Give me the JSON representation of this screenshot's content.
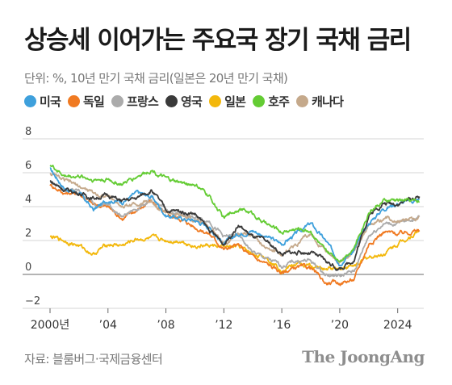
{
  "header": {
    "title": "상승세 이어가는 주요국 장기 국채 금리",
    "subtitle": "단위: %, 10년 만기 국채 금리(일본은 20년 만기 국채)"
  },
  "footer": {
    "source": "자료: 블룸버그·국제금융센터",
    "logo": "The JoongAng"
  },
  "chart_data": {
    "type": "line",
    "title": "",
    "xlabel": "",
    "ylabel": "",
    "ylim": [
      -2,
      8
    ],
    "xlim": [
      2000,
      2025.8
    ],
    "grid": true,
    "legend_position": "top-left",
    "y_ticks": [
      -2,
      0,
      2,
      4,
      6,
      8
    ],
    "y_tick_labels": [
      "−2",
      "0",
      "2",
      "4",
      "6",
      "8"
    ],
    "x_ticks": [
      2000,
      2004,
      2008,
      2012,
      2016,
      2020,
      2024
    ],
    "x_tick_labels": [
      "2000년",
      "’04",
      "’08",
      "’12",
      "’16",
      "’20",
      "2024"
    ],
    "series": [
      {
        "name": "미국",
        "color": "#3ea0dc",
        "x": [
          2000,
          2001,
          2002,
          2003,
          2004,
          2005,
          2006,
          2007,
          2008,
          2009,
          2010,
          2011,
          2012,
          2013,
          2014,
          2015,
          2016,
          2017,
          2018,
          2019,
          2020,
          2021,
          2022,
          2023,
          2024,
          2025.5
        ],
        "y": [
          6.2,
          5.1,
          4.8,
          3.8,
          4.4,
          4.3,
          4.8,
          4.6,
          3.5,
          3.3,
          3.2,
          2.8,
          1.8,
          2.4,
          2.6,
          2.2,
          1.8,
          2.4,
          3.0,
          2.0,
          0.7,
          1.5,
          3.0,
          3.9,
          4.2,
          4.4
        ]
      },
      {
        "name": "독일",
        "color": "#f07a22",
        "x": [
          2000,
          2001,
          2002,
          2003,
          2004,
          2005,
          2006,
          2007,
          2008,
          2009,
          2010,
          2011,
          2012,
          2013,
          2014,
          2015,
          2016,
          2017,
          2018,
          2019,
          2020,
          2021,
          2022,
          2023,
          2024,
          2025.5
        ],
        "y": [
          5.3,
          4.8,
          4.8,
          4.1,
          4.0,
          3.3,
          3.8,
          4.3,
          3.5,
          3.3,
          2.8,
          2.4,
          1.5,
          1.7,
          1.0,
          0.6,
          0.1,
          0.4,
          0.4,
          -0.5,
          -0.5,
          -0.3,
          1.8,
          2.5,
          2.4,
          2.6
        ]
      },
      {
        "name": "프랑스",
        "color": "#ababab",
        "x": [
          2000,
          2001,
          2002,
          2003,
          2004,
          2005,
          2006,
          2007,
          2008,
          2009,
          2010,
          2011,
          2012,
          2013,
          2014,
          2015,
          2016,
          2017,
          2018,
          2019,
          2020,
          2021,
          2022,
          2023,
          2024,
          2025.5
        ],
        "y": [
          5.5,
          5.0,
          4.9,
          4.2,
          4.1,
          3.4,
          3.9,
          4.4,
          3.8,
          3.6,
          3.3,
          3.2,
          2.2,
          2.3,
          1.3,
          0.9,
          0.5,
          0.8,
          0.8,
          0.0,
          -0.1,
          0.2,
          2.3,
          3.0,
          3.0,
          3.4
        ]
      },
      {
        "name": "영국",
        "color": "#3a3a3a",
        "x": [
          2000,
          2001,
          2002,
          2003,
          2004,
          2005,
          2006,
          2007,
          2008,
          2009,
          2010,
          2011,
          2012,
          2013,
          2014,
          2015,
          2016,
          2017,
          2018,
          2019,
          2020,
          2021,
          2022,
          2023,
          2024,
          2025.5
        ],
        "y": [
          5.5,
          5.0,
          4.8,
          4.5,
          4.7,
          4.3,
          4.5,
          5.0,
          3.8,
          3.7,
          3.6,
          2.6,
          1.8,
          2.9,
          2.2,
          1.9,
          1.2,
          1.3,
          1.3,
          0.8,
          0.3,
          0.9,
          3.5,
          4.2,
          4.2,
          4.6
        ]
      },
      {
        "name": "일본",
        "color": "#f3b80c",
        "x": [
          2000,
          2001,
          2002,
          2003,
          2004,
          2005,
          2006,
          2007,
          2008,
          2009,
          2010,
          2011,
          2012,
          2013,
          2014,
          2015,
          2016,
          2017,
          2018,
          2019,
          2020,
          2021,
          2022,
          2023,
          2024,
          2025.5
        ],
        "y": [
          2.2,
          2.0,
          1.7,
          1.2,
          1.8,
          1.7,
          2.1,
          2.1,
          2.0,
          2.0,
          1.7,
          1.7,
          1.6,
          1.6,
          1.2,
          1.0,
          0.3,
          0.6,
          0.5,
          0.3,
          0.4,
          0.5,
          1.0,
          1.2,
          1.8,
          2.6
        ]
      },
      {
        "name": "호주",
        "color": "#64cc34",
        "x": [
          2000,
          2001,
          2002,
          2003,
          2004,
          2005,
          2006,
          2007,
          2008,
          2009,
          2010,
          2011,
          2012,
          2013,
          2014,
          2015,
          2016,
          2017,
          2018,
          2019,
          2020,
          2021,
          2022,
          2023,
          2024,
          2025.5
        ],
        "y": [
          6.5,
          5.8,
          5.8,
          5.6,
          5.6,
          5.3,
          5.8,
          6.2,
          5.6,
          5.4,
          5.3,
          4.6,
          3.3,
          3.9,
          3.6,
          2.9,
          2.5,
          2.7,
          2.6,
          1.3,
          0.9,
          1.6,
          3.7,
          4.3,
          4.4,
          4.3
        ]
      },
      {
        "name": "캐나다",
        "color": "#c5a98b",
        "x": [
          2000,
          2001,
          2002,
          2003,
          2004,
          2005,
          2006,
          2007,
          2008,
          2009,
          2010,
          2011,
          2012,
          2013,
          2014,
          2015,
          2016,
          2017,
          2018,
          2019,
          2020,
          2021,
          2022,
          2023,
          2024,
          2025.5
        ],
        "y": [
          6.0,
          5.5,
          5.2,
          4.8,
          4.6,
          4.0,
          4.2,
          4.3,
          3.7,
          3.4,
          3.2,
          2.8,
          1.9,
          2.4,
          2.3,
          1.5,
          1.2,
          1.8,
          2.3,
          1.5,
          0.6,
          1.4,
          2.9,
          3.3,
          3.2,
          3.4
        ]
      }
    ]
  }
}
